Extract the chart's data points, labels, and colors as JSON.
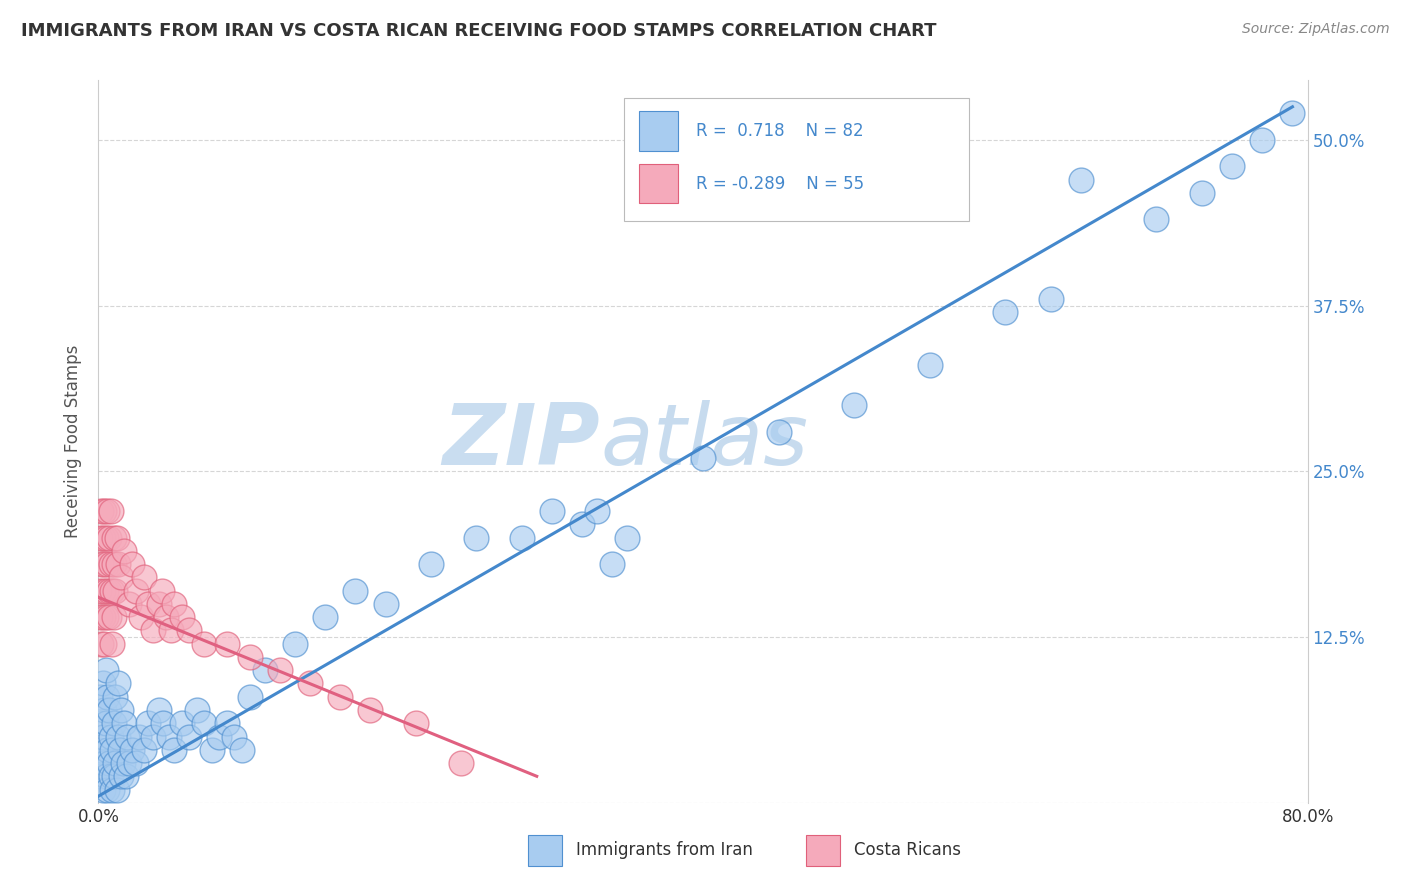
{
  "title": "IMMIGRANTS FROM IRAN VS COSTA RICAN RECEIVING FOOD STAMPS CORRELATION CHART",
  "source": "Source: ZipAtlas.com",
  "ylabel": "Receiving Food Stamps",
  "xmin": 0.0,
  "xmax": 0.8,
  "ymin": 0.0,
  "ymax": 0.545,
  "ytick_vals": [
    0.0,
    0.125,
    0.25,
    0.375,
    0.5
  ],
  "ytick_labels": [
    "",
    "12.5%",
    "25.0%",
    "37.5%",
    "50.0%"
  ],
  "color_iran_fill": "#A8CCF0",
  "color_iran_edge": "#5090D0",
  "color_cr_fill": "#F5AABB",
  "color_cr_edge": "#E0607A",
  "color_line_iran": "#4488CC",
  "color_line_cr": "#E06080",
  "color_watermark": "#C8DCF0",
  "background_color": "#FFFFFF",
  "grid_color": "#CCCCCC",
  "border_color": "#CCCCCC",
  "legend_text_color": "#4488CC",
  "title_color": "#333333",
  "source_color": "#888888",
  "ylabel_color": "#555555",
  "xtick_color": "#333333",
  "ytick_color": "#4488CC",
  "iran_line_x0": 0.0,
  "iran_line_y0": 0.005,
  "iran_line_x1": 0.79,
  "iran_line_y1": 0.525,
  "cr_line_x0": 0.0,
  "cr_line_y0": 0.155,
  "cr_line_x1": 0.29,
  "cr_line_y1": 0.02
}
